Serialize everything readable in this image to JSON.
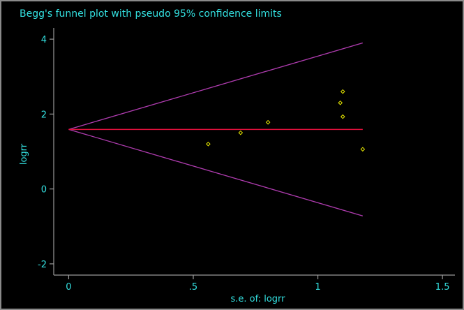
{
  "chart_data": {
    "type": "scatter",
    "title": "Begg's funnel plot with pseudo 95% confidence limits",
    "xlabel": "s.e. of: logrr",
    "ylabel": "logrr",
    "xlim": [
      -0.06,
      1.55
    ],
    "ylim": [
      -2.3,
      4.3
    ],
    "x_ticks": [
      0,
      0.5,
      1,
      1.5
    ],
    "x_tick_labels": [
      "0",
      ".5",
      "1",
      "1.5"
    ],
    "y_ticks": [
      -2,
      0,
      2,
      4
    ],
    "y_tick_labels": [
      "-2",
      "0",
      "2",
      "4"
    ],
    "pooled_estimate": 1.59,
    "pooled_line_xrange": [
      0,
      1.18
    ],
    "confidence_limits": {
      "upper": [
        [
          0,
          1.59
        ],
        [
          1.18,
          3.9
        ]
      ],
      "lower": [
        [
          0,
          1.59
        ],
        [
          1.18,
          -0.72
        ]
      ]
    },
    "points": [
      {
        "x": 0.56,
        "y": 1.2
      },
      {
        "x": 0.69,
        "y": 1.5
      },
      {
        "x": 0.8,
        "y": 1.78
      },
      {
        "x": 1.1,
        "y": 2.6
      },
      {
        "x": 1.09,
        "y": 2.3
      },
      {
        "x": 1.1,
        "y": 1.93
      },
      {
        "x": 1.18,
        "y": 1.06
      }
    ],
    "grid": false,
    "colors": {
      "background": "#000000",
      "text": "#33e0e0",
      "axis": "#9a9a9a",
      "pooled_line": "#e0103c",
      "confidence_limits": "#b03cb0",
      "markers": "#e8e800"
    }
  }
}
